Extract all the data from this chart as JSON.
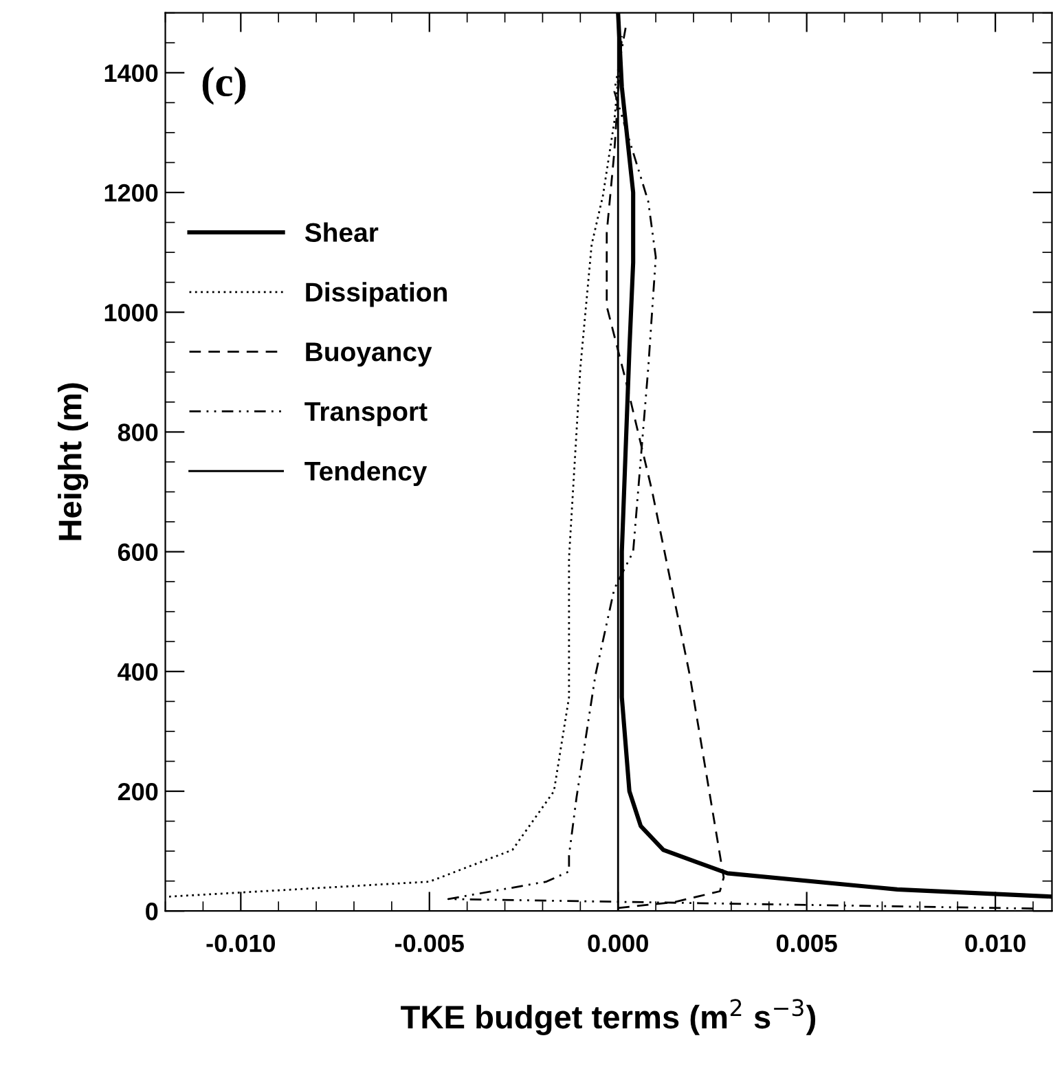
{
  "chart_data": {
    "type": "line",
    "xlabel": "TKE budget terms (m$^{2}$ s$^{−3}$)",
    "ylabel": "Height (m)",
    "annotations": [
      "(c)"
    ],
    "xlim": [
      -0.012,
      0.0115
    ],
    "ylim": [
      0,
      1500
    ],
    "xticks": [
      {
        "value": -0.01,
        "label": "-0.010"
      },
      {
        "value": -0.005,
        "label": "-0.005"
      },
      {
        "value": 0.0,
        "label": "0.000"
      },
      {
        "value": 0.005,
        "label": "0.005"
      },
      {
        "value": 0.01,
        "label": "0.010"
      }
    ],
    "yticks": [
      0,
      200,
      400,
      600,
      800,
      1000,
      1200,
      1400
    ],
    "legend": "left",
    "grid": false,
    "series": [
      {
        "name": "Shear",
        "color": "#000000",
        "line_style": "solid",
        "x": [
          0.0115,
          0.0074,
          0.0029,
          0.0012,
          0.0006,
          0.0003,
          0.0001,
          0.0001,
          0.0003,
          0.0004,
          0.0004,
          0.0001,
          0.0
        ],
        "values": [
          24,
          36,
          63,
          102,
          142,
          200,
          357,
          600,
          937,
          1083,
          1200,
          1376,
          1500
        ]
      },
      {
        "name": "Dissipation",
        "color": "#000000",
        "line_style": "dotted",
        "x": [
          -0.0119,
          -0.005,
          -0.0028,
          -0.0017,
          -0.0013,
          -0.0013,
          -0.001,
          -0.0007,
          -0.0004,
          -0.0001,
          0.0001
        ],
        "values": [
          24,
          49,
          102,
          200,
          357,
          590,
          907,
          1113,
          1195,
          1318,
          1461
        ]
      },
      {
        "name": "Buoyancy",
        "color": "#000000",
        "line_style": "dashed",
        "x": [
          0.0,
          0.0015,
          0.0027,
          0.0028,
          0.0019,
          0.0009,
          0.0002,
          -0.0003,
          -0.0003,
          -0.0001,
          0.0001
        ],
        "values": [
          5,
          15,
          33,
          56,
          394,
          702,
          887,
          1010,
          1133,
          1267,
          1461
        ]
      },
      {
        "name": "Transport",
        "color": "#000000",
        "line_style": "dashdot",
        "x": [
          0.011,
          -0.0045,
          -0.0019,
          -0.0013,
          -0.0013,
          -0.0011,
          -0.0006,
          -0.0001,
          0.0004,
          0.0008,
          0.001,
          0.0008,
          -0.0001,
          0.0002
        ],
        "values": [
          4,
          20,
          49,
          66,
          93,
          190,
          394,
          538,
          600,
          907,
          1092,
          1185,
          1369,
          1475
        ]
      },
      {
        "name": "Tendency",
        "color": "#000000",
        "line_style": "solid",
        "x": [
          0.0,
          0.0,
          0.0
        ],
        "values": [
          0,
          700,
          1500
        ]
      }
    ]
  }
}
